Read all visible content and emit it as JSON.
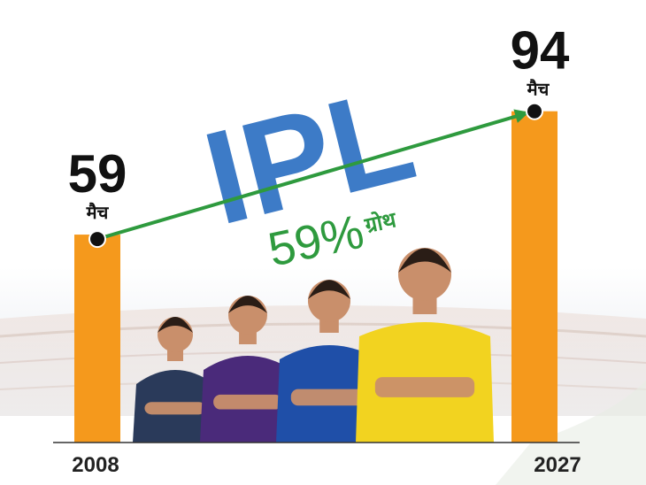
{
  "chart_data": {
    "type": "bar",
    "title": "IPL",
    "categories": [
      "2008",
      "2027"
    ],
    "values": [
      59,
      94
    ],
    "unit_label": "मैच",
    "annotation": {
      "value": "59%",
      "word": "ग्रोथ"
    },
    "ylim": [
      0,
      110
    ],
    "grid": false,
    "legend": "none"
  },
  "colors": {
    "bar": "#F5991C",
    "title": "#3D7BC7",
    "arrow": "#2E9A3E",
    "growth_text": "#2E9A3E",
    "label_text": "#111111",
    "background": "#FFFFFF",
    "stadium": "#E6E9EE"
  },
  "players": [
    {
      "icon": "player-gt-icon",
      "jersey_color": "#2A3A5A"
    },
    {
      "icon": "player-kkr-icon",
      "jersey_color": "#4A2A7A"
    },
    {
      "icon": "player-mi-icon",
      "jersey_color": "#1F4FA8"
    },
    {
      "icon": "player-csk-icon",
      "jersey_color": "#F2D320"
    }
  ]
}
